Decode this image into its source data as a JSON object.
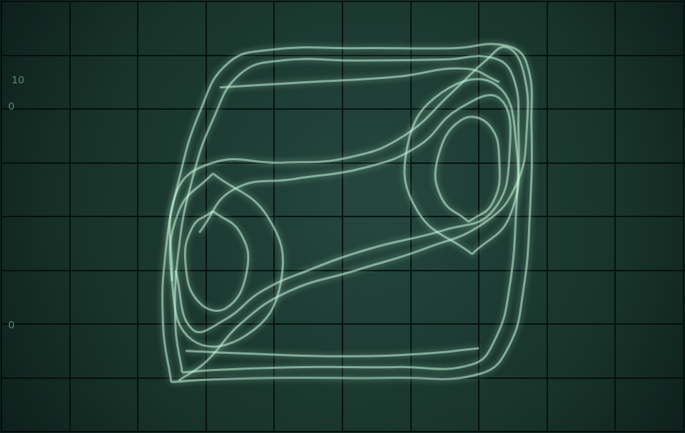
{
  "chart_data": {
    "type": "line",
    "color": "#c4f7dc",
    "marker": "none",
    "grid": true,
    "tick_labels": false,
    "xlim": [
      -5,
      5
    ],
    "ylim": [
      -4,
      4
    ],
    "xticks": [
      -5,
      -4,
      -3,
      -2,
      -1,
      0,
      1,
      2,
      3,
      4,
      5
    ],
    "yticks": [
      -4,
      -3,
      -2,
      -1,
      0,
      1,
      2,
      3,
      4
    ],
    "annotations": [
      {
        "text": "10",
        "x": -4.85,
        "y": 2.53
      },
      {
        "text": "0",
        "x": -4.9,
        "y": 2.04
      },
      {
        "text": "0",
        "x": -4.9,
        "y": -2.03
      }
    ],
    "series": [
      {
        "x": [
          -2.51,
          -2.63,
          -2.59,
          -2.4,
          -2.09,
          -1.68,
          -1.06,
          0.18,
          1.62,
          2.39,
          2.7,
          2.77,
          2.75,
          2.65,
          2.44,
          2.03,
          0.79,
          -0.65,
          -1.89,
          -2.51
        ],
        "values": [
          -3.08,
          -2.03,
          -0.62,
          0.67,
          1.95,
          2.85,
          3.1,
          3.13,
          3.13,
          3.18,
          2.85,
          1.69,
          0.15,
          -1.38,
          -2.41,
          -2.92,
          -3.0,
          -3.0,
          -3.03,
          -3.08
        ]
      },
      {
        "x": [
          -2.35,
          -2.45,
          -2.4,
          -2.2,
          -1.9,
          -1.5,
          -0.9,
          0.2,
          1.5,
          2.2,
          2.5,
          2.58,
          2.55,
          2.45,
          2.25,
          1.9,
          0.8,
          -0.6,
          -1.8,
          -2.35
        ],
        "values": [
          -2.9,
          -2.0,
          -0.6,
          0.7,
          1.8,
          2.65,
          2.9,
          2.9,
          2.92,
          2.95,
          2.6,
          1.6,
          0.2,
          -1.3,
          -2.25,
          -2.75,
          -2.8,
          -2.8,
          -2.85,
          -2.9
        ]
      },
      {
        "x": [
          -1.9,
          -1.5,
          -1.4,
          -1.7,
          -2.1,
          -2.3,
          -2.2,
          -1.9
        ],
        "values": [
          0.1,
          -0.3,
          -1.0,
          -1.7,
          -1.6,
          -0.9,
          -0.2,
          0.1
        ]
      },
      {
        "x": [
          -1.9,
          -1.1,
          -0.9,
          -1.4,
          -2.2,
          -2.5,
          -2.4,
          -1.9
        ],
        "values": [
          0.8,
          0.0,
          -1.2,
          -2.2,
          -2.3,
          -1.2,
          0.1,
          0.8
        ]
      },
      {
        "x": [
          1.85,
          1.45,
          1.4,
          1.75,
          2.15,
          2.3,
          2.2,
          1.85
        ],
        "values": [
          -0.1,
          0.35,
          1.1,
          1.8,
          1.7,
          1.0,
          0.25,
          -0.1
        ]
      },
      {
        "x": [
          1.9,
          1.1,
          0.95,
          1.45,
          2.25,
          2.55,
          2.45,
          1.9
        ],
        "values": [
          -0.7,
          0.1,
          1.3,
          2.3,
          2.45,
          1.3,
          0.0,
          -0.7
        ]
      },
      {
        "x": [
          -2.5,
          -2.45,
          -1.9,
          -0.9,
          0.1,
          0.9,
          1.6,
          2.1,
          2.4,
          2.65,
          2.7,
          2.55,
          2.1,
          1.2,
          0.2,
          -0.8,
          -1.5,
          -2.0,
          -2.4
        ],
        "values": [
          -1.2,
          0.4,
          1.0,
          1.0,
          1.1,
          1.5,
          2.3,
          2.9,
          3.15,
          2.7,
          1.6,
          0.6,
          -0.1,
          -0.6,
          -1.0,
          -1.4,
          -2.0,
          -2.7,
          -3.05
        ]
      },
      {
        "x": [
          -2.1,
          -1.6,
          -0.7,
          0.3,
          1.1,
          1.7,
          2.3,
          2.45,
          2.2,
          1.5,
          0.4,
          -0.5,
          -1.2,
          -1.7,
          -2.2,
          -2.45
        ],
        "values": [
          -0.3,
          0.5,
          0.7,
          0.9,
          1.3,
          2.0,
          2.2,
          1.2,
          0.1,
          -0.25,
          -0.6,
          -1.0,
          -1.4,
          -1.9,
          -2.1,
          -1.0
        ]
      },
      {
        "x": [
          -1.8,
          -0.5,
          0.8,
          1.8,
          2.3
        ],
        "values": [
          2.4,
          2.5,
          2.6,
          2.75,
          2.5
        ]
      },
      {
        "x": [
          -2.3,
          -1.4,
          0.0,
          1.2,
          2.0
        ],
        "values": [
          -2.5,
          -2.55,
          -2.6,
          -2.55,
          -2.45
        ]
      }
    ]
  }
}
